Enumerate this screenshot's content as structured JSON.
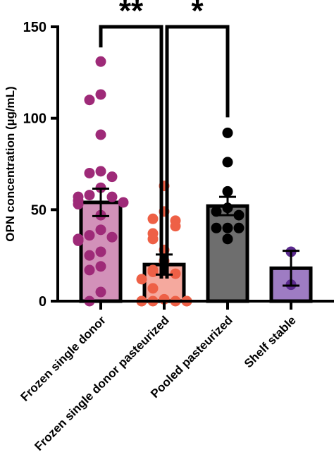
{
  "chart_data": {
    "type": "bar",
    "ylabel": "OPN concentration (µg/mL)",
    "xlabel": "",
    "ylim": [
      0,
      150
    ],
    "yticks": [
      0,
      50,
      100,
      150
    ],
    "error_bars": "mean ± SEM",
    "groups": [
      {
        "label": "Frozen single donor",
        "color": "#d291b9",
        "point_color": "#9e2a78",
        "mean": 54,
        "error": 7.5,
        "points": [
          131,
          113,
          110,
          91,
          71,
          70,
          68,
          62,
          58,
          57,
          57,
          55,
          54,
          53,
          47,
          39,
          36,
          35,
          34,
          33,
          27,
          25,
          19,
          17,
          5,
          0
        ]
      },
      {
        "label": "Frozen single donor pasteurized",
        "color": "#f5a99e",
        "point_color": "#ee6046",
        "mean": 20,
        "error": 5.5,
        "points": [
          63,
          49,
          45,
          44,
          41,
          37,
          34,
          28,
          22,
          17,
          16,
          15,
          12,
          7,
          1,
          0,
          0,
          0,
          0,
          0,
          0
        ]
      },
      {
        "label": "Pooled pasteurized",
        "color": "#6e6e6e",
        "point_color": "#000000",
        "mean": 52,
        "error": 5,
        "points": [
          92,
          76,
          60,
          51,
          49,
          47,
          40,
          40,
          40,
          34
        ]
      },
      {
        "label": "Shelf stable",
        "color": "#9e7cc3",
        "point_color": "#5b2a8f",
        "mean": 18,
        "error": 9.5,
        "points": [
          27,
          9
        ]
      }
    ],
    "significance": [
      {
        "from": 0,
        "to": 1,
        "label": "**"
      },
      {
        "from": 1,
        "to": 2,
        "label": "*"
      }
    ]
  }
}
